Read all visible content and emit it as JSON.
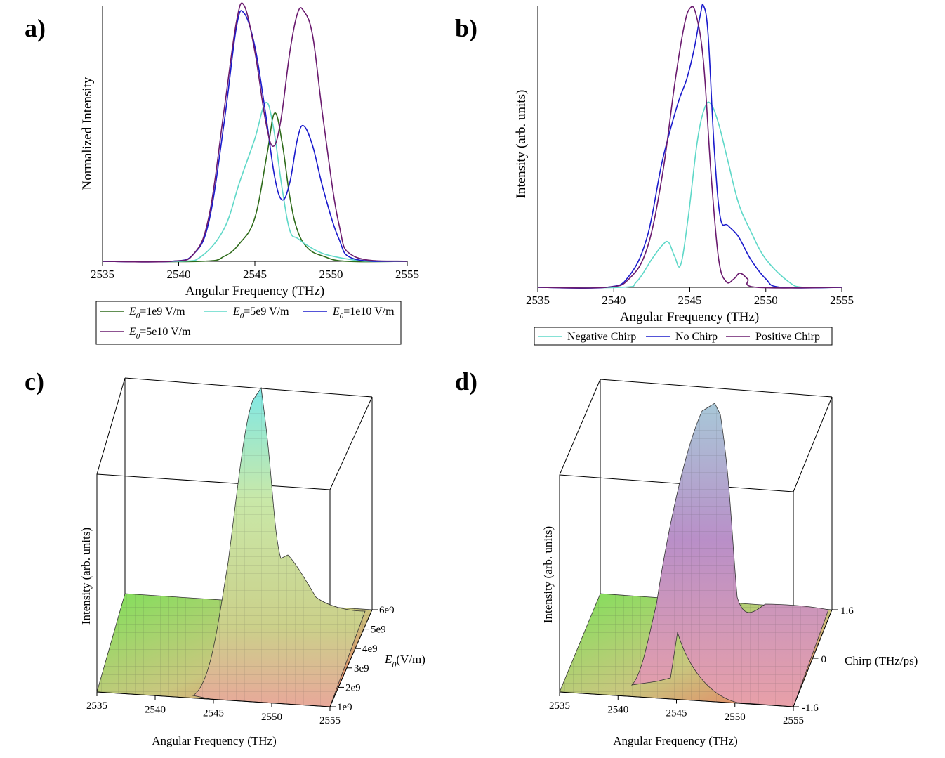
{
  "panels": {
    "a": {
      "label": "a)"
    },
    "b": {
      "label": "b)"
    },
    "c": {
      "label": "c)"
    },
    "d": {
      "label": "d)"
    }
  },
  "chart_data": [
    {
      "id": "a",
      "type": "line",
      "title": "",
      "xlabel": "Angular Frequency (THz)",
      "ylabel": "Normalized Intensity",
      "xlim": [
        2535,
        2555
      ],
      "ylim": [
        0,
        1
      ],
      "xticks": [
        2535,
        2540,
        2545,
        2550,
        2555
      ],
      "legend_position": "bottom",
      "series": [
        {
          "name": "E0=1e9 V/m",
          "prefix": "E",
          "sub": "0",
          "suffix": "=1e9 V/m",
          "color": "#2e6b1a",
          "x": [
            2535,
            2541.5,
            2543,
            2544,
            2545,
            2545.8,
            2546.3,
            2546.8,
            2547.3,
            2547.8,
            2548.5,
            2549.5,
            2551,
            2555
          ],
          "y": [
            0,
            0,
            0.02,
            0.07,
            0.17,
            0.42,
            0.58,
            0.46,
            0.25,
            0.12,
            0.05,
            0.02,
            0,
            0
          ]
        },
        {
          "name": "E0=5e9 V/m",
          "prefix": "E",
          "sub": "0",
          "suffix": "=5e9 V/m",
          "color": "#5fd8c8",
          "x": [
            2535,
            2540,
            2541.5,
            2543,
            2544,
            2545,
            2545.7,
            2546.2,
            2546.8,
            2547.3,
            2547.8,
            2548.5,
            2549.5,
            2551,
            2552.5,
            2555
          ],
          "y": [
            0,
            0,
            0.02,
            0.13,
            0.31,
            0.48,
            0.62,
            0.53,
            0.28,
            0.12,
            0.09,
            0.06,
            0.03,
            0.01,
            0,
            0
          ]
        },
        {
          "name": "E0=1e10 V/m",
          "prefix": "E",
          "sub": "0",
          "suffix": "=1e10 V/m",
          "color": "#1a1acc",
          "x": [
            2535,
            2539.5,
            2541,
            2542,
            2543,
            2543.8,
            2544.3,
            2545,
            2545.7,
            2546.3,
            2546.8,
            2547.3,
            2547.8,
            2548.2,
            2548.8,
            2549.5,
            2550.5,
            2551.5,
            2555
          ],
          "y": [
            0,
            0,
            0.03,
            0.16,
            0.55,
            0.92,
            0.97,
            0.84,
            0.58,
            0.33,
            0.24,
            0.31,
            0.48,
            0.53,
            0.45,
            0.28,
            0.09,
            0.01,
            0
          ]
        },
        {
          "name": "E0=5e10 V/m",
          "prefix": "E",
          "sub": "0",
          "suffix": "=5e10 V/m",
          "color": "#6a1a6e",
          "x": [
            2535,
            2539.5,
            2541,
            2542,
            2543,
            2543.8,
            2544.3,
            2545,
            2545.7,
            2546.2,
            2546.7,
            2547.3,
            2547.8,
            2548.2,
            2548.8,
            2549.5,
            2550.5,
            2551.5,
            2555
          ],
          "y": [
            0,
            0,
            0.03,
            0.18,
            0.6,
            0.94,
            1.0,
            0.82,
            0.55,
            0.45,
            0.55,
            0.82,
            0.97,
            0.98,
            0.88,
            0.55,
            0.15,
            0.02,
            0
          ]
        }
      ]
    },
    {
      "id": "b",
      "type": "line",
      "title": "",
      "xlabel": "Angular Frequency (THz)",
      "ylabel": "Intensity (arb. units)",
      "xlim": [
        2535,
        2555
      ],
      "ylim": [
        0,
        1
      ],
      "xticks": [
        2535,
        2540,
        2545,
        2550,
        2555
      ],
      "legend_position": "bottom",
      "series": [
        {
          "name": "Negative Chirp",
          "color": "#5fd8c8",
          "x": [
            2535,
            2540.5,
            2541.5,
            2542.5,
            2543.2,
            2543.6,
            2544,
            2544.4,
            2544.9,
            2545.5,
            2546.0,
            2546.4,
            2546.9,
            2547.5,
            2548.2,
            2549,
            2550,
            2551.5,
            2552.5,
            2555
          ],
          "y": [
            0,
            0,
            0.02,
            0.1,
            0.15,
            0.16,
            0.11,
            0.08,
            0.25,
            0.52,
            0.64,
            0.65,
            0.58,
            0.45,
            0.3,
            0.2,
            0.1,
            0.02,
            0,
            0
          ]
        },
        {
          "name": "No Chirp",
          "color": "#1a1acc",
          "x": [
            2535,
            2539.5,
            2541,
            2542.2,
            2543.2,
            2544.2,
            2544.8,
            2545.3,
            2545.7,
            2545.9,
            2546.2,
            2546.6,
            2547,
            2547.5,
            2548.2,
            2549,
            2550,
            2551,
            2555
          ],
          "y": [
            0,
            0,
            0.04,
            0.18,
            0.45,
            0.65,
            0.74,
            0.85,
            0.97,
            1.0,
            0.9,
            0.5,
            0.25,
            0.22,
            0.18,
            0.1,
            0.03,
            0,
            0
          ]
        },
        {
          "name": "Positive Chirp",
          "color": "#6a1a6e",
          "x": [
            2535,
            2539.5,
            2541,
            2542.2,
            2543.2,
            2544,
            2544.6,
            2545.0,
            2545.4,
            2545.9,
            2546.4,
            2546.9,
            2547.4,
            2547.9,
            2548.3,
            2548.8,
            2549.4,
            2555
          ],
          "y": [
            0,
            0,
            0.03,
            0.14,
            0.4,
            0.72,
            0.92,
            0.99,
            0.97,
            0.8,
            0.4,
            0.1,
            0.02,
            0.03,
            0.05,
            0.03,
            0,
            0
          ]
        }
      ]
    },
    {
      "id": "c",
      "type": "surface",
      "title": "",
      "xlabel": "Angular Frequency (THz)",
      "ylabel": "",
      "ylabel_prefix": "E",
      "ylabel_sub": "0",
      "ylabel_suffix": "(V/m)",
      "zlabel": "Intensity (arb. units)",
      "xticks": [
        "2535",
        "2540",
        "2545",
        "2550",
        "2555"
      ],
      "yticks": [
        "1e9",
        "2e9",
        "3e9",
        "4e9",
        "5e9",
        "6e9"
      ]
    },
    {
      "id": "d",
      "type": "surface",
      "title": "",
      "xlabel": "Angular Frequency (THz)",
      "ylabel": "Chirp (THz/ps)",
      "zlabel": "Intensity (arb. units)",
      "xticks": [
        "2535",
        "2540",
        "2545",
        "2550",
        "2555"
      ],
      "yticks": [
        "-1.6",
        "0",
        "1.6"
      ]
    }
  ]
}
